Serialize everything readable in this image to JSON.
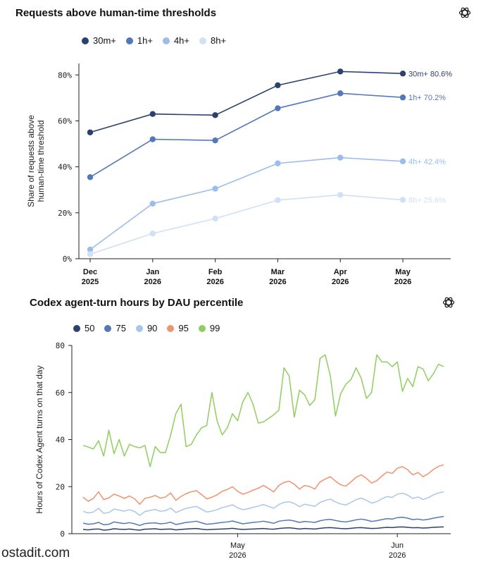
{
  "chart_data": [
    {
      "type": "line",
      "title": "Requests above human-time thresholds",
      "ylabel": "Share of requests above human-time threshold",
      "ylim": [
        0,
        85
      ],
      "yticks": [
        "0%",
        "20%",
        "40%",
        "60%",
        "80%"
      ],
      "ytick_values": [
        0,
        20,
        40,
        60,
        80
      ],
      "categories": [
        "Dec\n2025",
        "Jan\n2026",
        "Feb\n2026",
        "Mar\n2026",
        "Apr\n2026",
        "May\n2026"
      ],
      "legend": "top-left",
      "grid": false,
      "series": [
        {
          "name": "30m+",
          "color": "#2b4170",
          "values": [
            55.0,
            63.0,
            62.5,
            75.5,
            81.5,
            80.6
          ],
          "end_label": "30m+ 80.6%"
        },
        {
          "name": "1h+",
          "color": "#5477b8",
          "values": [
            35.5,
            52.0,
            51.5,
            65.5,
            72.0,
            70.2
          ],
          "end_label": "1h+ 70.2%"
        },
        {
          "name": "4h+",
          "color": "#9bbcec",
          "values": [
            4.0,
            24.0,
            30.5,
            41.5,
            44.0,
            42.4
          ],
          "end_label": "4h+ 42.4%"
        },
        {
          "name": "8h+",
          "color": "#cfe0f7",
          "values": [
            2.0,
            11.0,
            17.5,
            25.5,
            27.8,
            25.6
          ],
          "end_label": "8h+ 25.6%"
        }
      ]
    },
    {
      "type": "line",
      "title": "Codex agent-turn hours by DAU percentile",
      "ylabel": "Hours of Codex Agent turns on that day",
      "ylim": [
        0,
        80
      ],
      "yticks": [
        "0",
        "20",
        "40",
        "60",
        "80"
      ],
      "ytick_values": [
        0,
        20,
        40,
        60,
        80
      ],
      "x_start": "2026-04-01",
      "x_days": 71,
      "xticks": [
        {
          "label": "May\n2026",
          "day": 30
        },
        {
          "label": "Jun\n2026",
          "day": 61
        }
      ],
      "legend": "top-left",
      "grid": false,
      "series": [
        {
          "name": "50",
          "color": "#2b4170",
          "values": [
            1.8,
            1.6,
            1.9,
            2.0,
            1.5,
            1.7,
            2.1,
            1.9,
            1.8,
            2.0,
            1.7,
            1.5,
            1.9,
            2.0,
            2.1,
            1.8,
            1.9,
            2.0,
            1.6,
            1.8,
            2.0,
            2.1,
            2.2,
            1.9,
            1.7,
            1.8,
            1.9,
            2.0,
            2.1,
            2.3,
            2.0,
            1.8,
            1.9,
            2.0,
            2.1,
            2.2,
            2.0,
            1.9,
            2.2,
            2.4,
            2.5,
            2.3,
            2.0,
            2.2,
            2.1,
            2.0,
            2.3,
            2.5,
            2.6,
            2.4,
            2.2,
            2.1,
            2.3,
            2.5,
            2.6,
            2.4,
            2.2,
            2.3,
            2.5,
            2.7,
            2.6,
            2.8,
            2.9,
            2.7,
            2.5,
            2.6,
            2.4,
            2.5,
            2.7,
            2.8,
            2.9
          ]
        },
        {
          "name": "75",
          "color": "#5477b8",
          "values": [
            4.5,
            4.0,
            4.2,
            4.8,
            3.8,
            4.0,
            5.0,
            4.6,
            4.3,
            4.7,
            4.2,
            3.5,
            4.3,
            4.5,
            4.6,
            4.2,
            4.4,
            4.9,
            3.9,
            4.3,
            4.8,
            5.0,
            5.3,
            4.6,
            4.0,
            4.2,
            4.5,
            4.8,
            5.0,
            5.4,
            4.8,
            4.2,
            4.5,
            4.8,
            5.0,
            5.3,
            4.9,
            4.4,
            5.3,
            5.6,
            5.8,
            5.4,
            4.8,
            5.2,
            5.0,
            4.8,
            5.5,
            5.9,
            6.1,
            5.6,
            5.2,
            5.0,
            5.4,
            5.9,
            6.2,
            5.8,
            5.2,
            5.5,
            6.0,
            6.4,
            6.2,
            6.8,
            7.0,
            6.6,
            6.0,
            6.2,
            5.8,
            6.1,
            6.6,
            7.0,
            7.3
          ]
        },
        {
          "name": "90",
          "color": "#a9c6ef",
          "values": [
            9.5,
            8.8,
            9.2,
            10.8,
            8.6,
            9.0,
            10.5,
            10.0,
            9.6,
            10.2,
            9.4,
            7.8,
            9.4,
            9.9,
            10.3,
            9.5,
            9.8,
            10.9,
            9.0,
            9.9,
            10.8,
            11.2,
            11.6,
            10.4,
            9.2,
            9.6,
            10.2,
            11.1,
            11.6,
            12.3,
            11.0,
            10.2,
            10.6,
            11.2,
            11.7,
            12.4,
            11.6,
            10.8,
            12.4,
            13.3,
            13.6,
            12.8,
            11.5,
            12.5,
            12.1,
            11.6,
            13.3,
            14.1,
            14.7,
            13.5,
            12.6,
            12.2,
            13.3,
            14.5,
            15.1,
            14.2,
            13.0,
            13.6,
            14.8,
            15.8,
            15.4,
            16.8,
            17.2,
            16.4,
            15.0,
            15.6,
            14.5,
            15.3,
            16.5,
            17.3,
            17.8
          ]
        },
        {
          "name": "95",
          "color": "#f0926a",
          "values": [
            15.5,
            13.8,
            15.0,
            17.8,
            14.5,
            15.2,
            16.8,
            16.0,
            15.0,
            16.0,
            14.8,
            12.5,
            15.0,
            15.5,
            16.2,
            15.1,
            15.6,
            17.3,
            14.2,
            15.8,
            17.0,
            17.8,
            18.3,
            16.6,
            14.8,
            15.5,
            16.5,
            18.0,
            18.8,
            20.0,
            18.0,
            16.8,
            17.5,
            18.5,
            19.3,
            20.5,
            19.2,
            17.8,
            20.5,
            21.8,
            22.3,
            21.0,
            19.0,
            20.5,
            20.0,
            19.0,
            22.0,
            23.2,
            24.2,
            22.3,
            20.8,
            20.2,
            22.0,
            24.0,
            25.0,
            23.5,
            21.5,
            22.5,
            24.5,
            26.2,
            25.6,
            27.8,
            28.5,
            27.2,
            25.0,
            26.0,
            24.2,
            25.5,
            27.3,
            28.6,
            29.3
          ]
        },
        {
          "name": "99",
          "color": "#8fce5e",
          "values": [
            37.5,
            36.8,
            36.0,
            39.5,
            33.0,
            44.0,
            34.0,
            40.0,
            33.0,
            38.0,
            37.0,
            36.5,
            37.5,
            28.5,
            37.0,
            34.5,
            34.5,
            42.0,
            51.0,
            55.0,
            37.0,
            38.0,
            42.0,
            45.0,
            46.0,
            60.0,
            48.0,
            42.0,
            45.0,
            51.0,
            48.0,
            56.0,
            60.0,
            55.0,
            47.0,
            47.5,
            49.0,
            50.5,
            52.5,
            70.5,
            67.0,
            49.5,
            61.0,
            59.0,
            54.5,
            57.0,
            74.5,
            76.0,
            67.0,
            50.0,
            59.5,
            63.5,
            65.5,
            70.5,
            66.0,
            57.5,
            60.0,
            76.0,
            73.0,
            73.0,
            71.0,
            73.0,
            60.5,
            66.0,
            62.5,
            71.0,
            70.0,
            65.0,
            68.0,
            72.0,
            71.0
          ]
        }
      ]
    }
  ],
  "watermark": "ostadit.com"
}
